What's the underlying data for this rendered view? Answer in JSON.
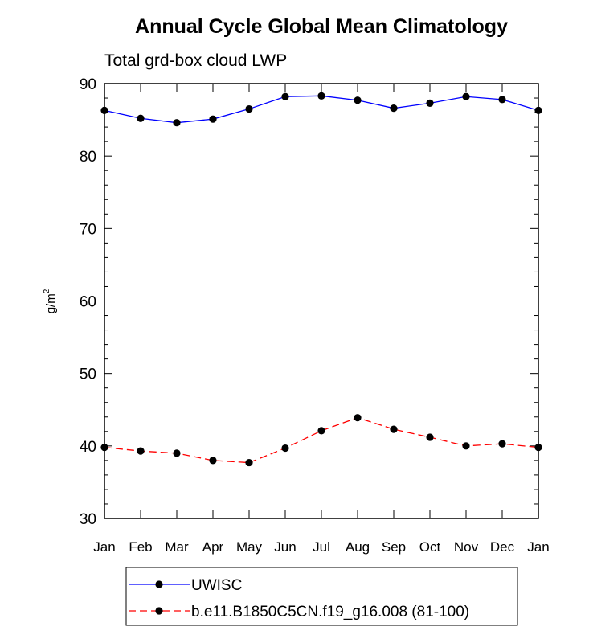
{
  "chart_data": {
    "type": "line",
    "title": "Annual Cycle Global Mean Climatology",
    "subtitle": "Total grd-box cloud LWP",
    "ylabel": "g/m",
    "ylabel_superscript": "2",
    "ylim": [
      30,
      90
    ],
    "yticks": [
      30,
      40,
      50,
      60,
      70,
      80,
      90
    ],
    "ytick_labels": [
      "30",
      "40",
      "50",
      "60",
      "70",
      "80",
      "90"
    ],
    "categories": [
      "Jan",
      "Feb",
      "Mar",
      "Apr",
      "May",
      "Jun",
      "Jul",
      "Aug",
      "Sep",
      "Oct",
      "Nov",
      "Dec",
      "Jan"
    ],
    "series": [
      {
        "name": "UWISC",
        "color": "#0000ff",
        "dash": "solid",
        "values": [
          86.3,
          85.2,
          84.6,
          85.1,
          86.5,
          88.2,
          88.3,
          87.7,
          86.6,
          87.3,
          88.2,
          87.8,
          86.3
        ]
      },
      {
        "name": "b.e11.B1850C5CN.f19_g16.008 (81-100)",
        "color": "#ff0000",
        "dash": "dashed",
        "values": [
          39.8,
          39.3,
          39.0,
          38.0,
          37.7,
          39.7,
          42.1,
          43.9,
          42.3,
          41.2,
          40.0,
          40.3,
          39.8
        ]
      }
    ],
    "legend_position": "bottom"
  }
}
